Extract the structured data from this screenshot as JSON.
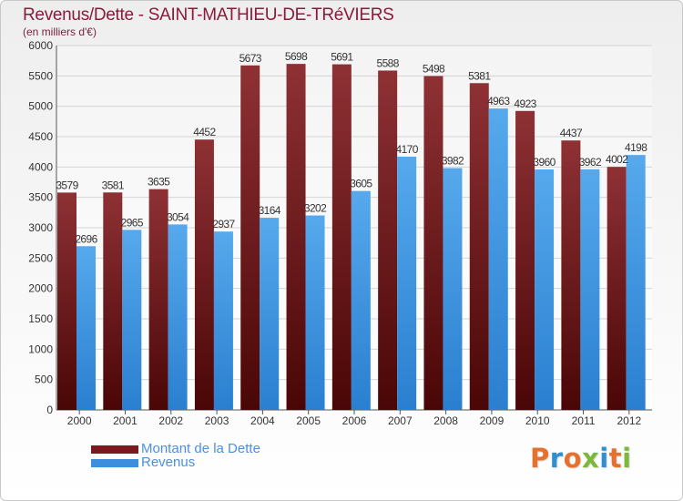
{
  "chart_data": {
    "type": "bar",
    "title": "Revenus/Dette - SAINT-MATHIEU-DE-TRéVIERS",
    "subtitle": "(en milliers d'€)",
    "categories": [
      "2000",
      "2001",
      "2002",
      "2003",
      "2004",
      "2005",
      "2006",
      "2007",
      "2008",
      "2009",
      "2010",
      "2011",
      "2012"
    ],
    "series": [
      {
        "name": "Montant de la Dette",
        "color": "#7a1a1e",
        "color_light": "#8e3135",
        "values": [
          3579,
          3581,
          3635,
          4452,
          5673,
          5698,
          5691,
          5588,
          5498,
          5381,
          4923,
          4437,
          4002
        ],
        "labels": [
          "3579",
          "3581",
          "3635",
          "4452",
          "5673",
          "5698",
          "5691",
          "5588",
          "5498",
          "5381",
          "4923",
          "4437",
          "4002"
        ]
      },
      {
        "name": "Revenus",
        "color": "#2a7fd0",
        "color_light": "#56a9ec",
        "values": [
          2696,
          2965,
          3054,
          2937,
          3164,
          3202,
          3605,
          4170,
          3982,
          4963,
          3960,
          3962,
          4198
        ],
        "labels": [
          "2696",
          "2965",
          "3054",
          "2937",
          "3164",
          "3202",
          "3605",
          "4170",
          "3982",
          "4963",
          "3960",
          "3962",
          "4198"
        ]
      }
    ],
    "ylim": [
      0,
      6000
    ],
    "yticks": [
      "0",
      "500",
      "1000",
      "1500",
      "2000",
      "2500",
      "3000",
      "3500",
      "4000",
      "4500",
      "5000",
      "5500",
      "6000"
    ],
    "grid": true,
    "legend_position": "bottom-left"
  },
  "legend": {
    "items": [
      {
        "label": "Montant de la Dette",
        "color": "#7a1a1e"
      },
      {
        "label": "Revenus",
        "color": "#3d8fdb"
      }
    ]
  },
  "brand": {
    "letters": [
      "P",
      "r",
      "o",
      "x",
      "i",
      "t",
      "i"
    ],
    "colors": [
      "#e6702e",
      "#2f8fd1",
      "#e6702e",
      "#7cb83b",
      "#2f8fd1",
      "#e6702e",
      "#7cb83b"
    ]
  }
}
